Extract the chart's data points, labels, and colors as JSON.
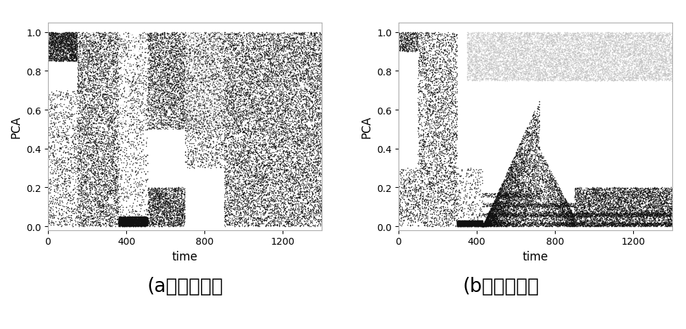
{
  "title_a": "(a）正常温升",
  "title_b": "(b）异常温升",
  "xlabel": "time",
  "ylabel": "PCA",
  "xlim": [
    0,
    1400
  ],
  "ylim": [
    -0.02,
    1.05
  ],
  "xticks": [
    0,
    400,
    800,
    1200
  ],
  "yticks": [
    0.0,
    0.2,
    0.4,
    0.6,
    0.8,
    1.0
  ],
  "bg_color": "#ffffff",
  "dark_color": "#111111",
  "light_color": "#bbbbbb",
  "title_fontsize": 20,
  "label_fontsize": 12,
  "tick_fontsize": 10
}
